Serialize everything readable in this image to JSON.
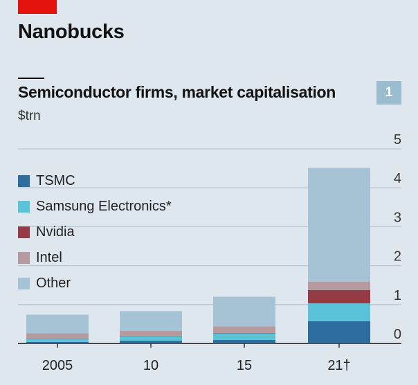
{
  "header": {
    "headline": "Nanobucks",
    "title": "Semiconductor firms, market capitalisation",
    "subtitle": "$trn",
    "chart_number": "1"
  },
  "colors": {
    "accent_red": "#e3120b",
    "TSMC": "#2e6da0",
    "Samsung Electronics*": "#5ac3d9",
    "Nvidia": "#973a47",
    "Intel": "#b59a9f",
    "Other": "#a6c3d6"
  },
  "chart_data": {
    "type": "bar",
    "stacked": true,
    "categories": [
      "2005",
      "10",
      "15",
      "21†"
    ],
    "series": [
      {
        "name": "TSMC",
        "values": [
          0.04,
          0.07,
          0.09,
          0.57
        ]
      },
      {
        "name": "Samsung Electronics*",
        "values": [
          0.07,
          0.11,
          0.16,
          0.46
        ]
      },
      {
        "name": "Nvidia",
        "values": [
          0.01,
          0.01,
          0.01,
          0.34
        ]
      },
      {
        "name": "Intel",
        "values": [
          0.14,
          0.13,
          0.18,
          0.22
        ]
      },
      {
        "name": "Other",
        "values": [
          0.48,
          0.51,
          0.76,
          2.92
        ]
      }
    ],
    "yticks": [
      0,
      1,
      2,
      3,
      4,
      5
    ],
    "ylim": [
      0,
      5
    ],
    "grid": true,
    "legend_position": "top-left"
  }
}
